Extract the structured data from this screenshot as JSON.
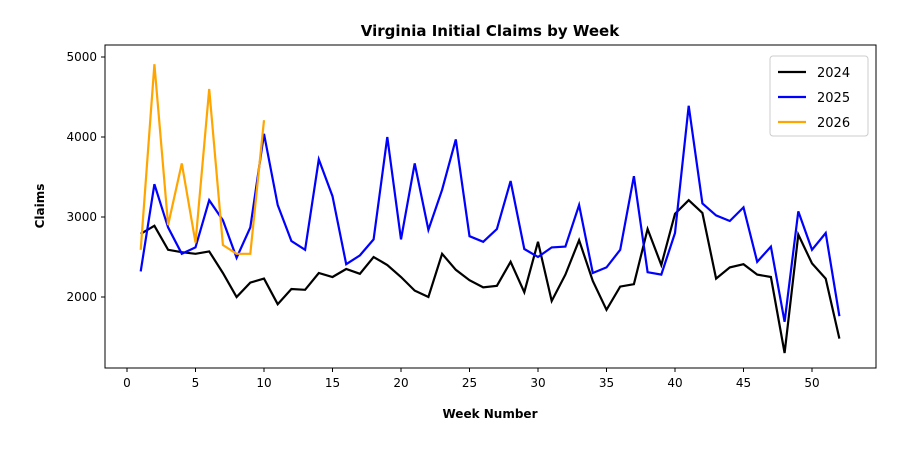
{
  "chart_data": {
    "type": "line",
    "title": "Virginia Initial Claims by Week",
    "xlabel": "Week Number",
    "ylabel": "Claims",
    "xlim": [
      -1.5,
      54.5
    ],
    "ylim": [
      1100,
      5150
    ],
    "xticks": [
      0,
      5,
      10,
      15,
      20,
      25,
      30,
      35,
      40,
      45,
      50
    ],
    "yticks": [
      2000,
      3000,
      4000,
      5000
    ],
    "grid": false,
    "legend": "top-right",
    "series": [
      {
        "name": "2024",
        "color": "#000000",
        "x": [
          1,
          2,
          3,
          4,
          5,
          6,
          7,
          8,
          9,
          10,
          11,
          12,
          13,
          14,
          15,
          16,
          17,
          18,
          19,
          20,
          21,
          22,
          23,
          24,
          25,
          26,
          27,
          28,
          29,
          30,
          31,
          32,
          33,
          34,
          35,
          36,
          37,
          38,
          39,
          40,
          41,
          42,
          43,
          44,
          45,
          46,
          47,
          48,
          49,
          50,
          51,
          52
        ],
        "values": [
          2790,
          2890,
          2590,
          2560,
          2540,
          2570,
          2300,
          2000,
          2180,
          2230,
          1910,
          2100,
          2090,
          2300,
          2250,
          2350,
          2290,
          2500,
          2400,
          2250,
          2080,
          2000,
          2540,
          2340,
          2210,
          2120,
          2140,
          2440,
          2060,
          2690,
          1950,
          2280,
          2710,
          2200,
          1840,
          2130,
          2160,
          2850,
          2400,
          3040,
          3210,
          3050,
          2230,
          2370,
          2410,
          2280,
          2250,
          1300,
          2780,
          2420,
          2230,
          1480
        ]
      },
      {
        "name": "2025",
        "color": "#0000ff",
        "x": [
          1,
          2,
          3,
          4,
          5,
          6,
          7,
          8,
          9,
          10,
          11,
          12,
          13,
          14,
          15,
          16,
          17,
          18,
          19,
          20,
          21,
          22,
          23,
          24,
          25,
          26,
          27,
          28,
          29,
          30,
          31,
          32,
          33,
          34,
          35,
          36,
          37,
          38,
          39,
          40,
          41,
          42,
          43,
          44,
          45,
          46,
          47,
          48,
          49,
          50,
          51,
          52
        ],
        "values": [
          2320,
          3410,
          2870,
          2540,
          2620,
          3210,
          2960,
          2490,
          2870,
          4040,
          3150,
          2700,
          2590,
          3720,
          3260,
          2410,
          2520,
          2720,
          4000,
          2720,
          3670,
          2840,
          3340,
          3970,
          2760,
          2690,
          2850,
          3450,
          2600,
          2500,
          2620,
          2630,
          3150,
          2300,
          2370,
          2590,
          3510,
          2310,
          2280,
          2800,
          4390,
          3170,
          3020,
          2950,
          3120,
          2440,
          2630,
          1690,
          3070,
          2590,
          2800,
          1760
        ]
      },
      {
        "name": "2026",
        "color": "#ffa500",
        "x": [
          1,
          2,
          3,
          4,
          5,
          6,
          7,
          8,
          9,
          10
        ],
        "values": [
          2590,
          4910,
          2900,
          3670,
          2680,
          4600,
          2650,
          2540,
          2540,
          4210
        ]
      }
    ]
  }
}
